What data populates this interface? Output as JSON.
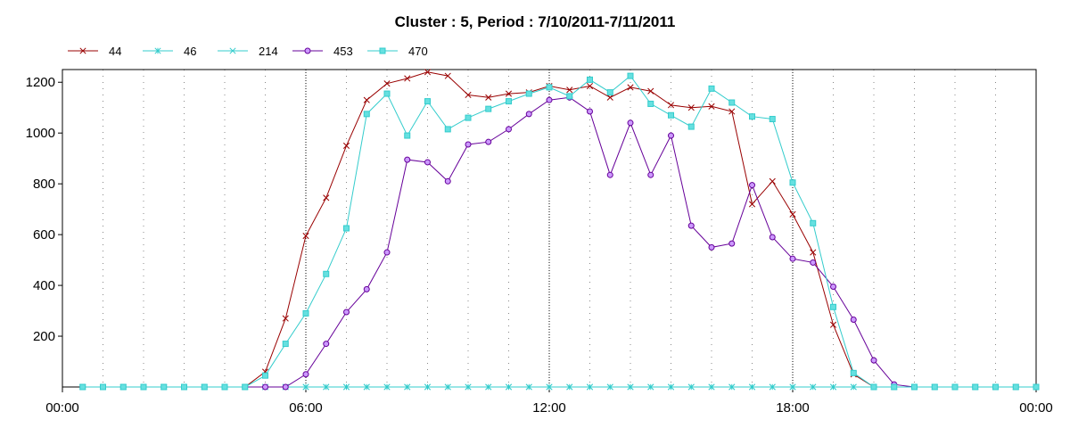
{
  "chart_data": {
    "type": "line",
    "title": "Cluster : 5, Period : 7/10/2011-7/11/2011",
    "xlabel": "",
    "ylabel": "",
    "x_ticks": [
      "00:00",
      "06:00",
      "12:00",
      "18:00",
      "00:00"
    ],
    "x_range_hours": [
      0,
      24
    ],
    "ylim": [
      0,
      1250
    ],
    "y_ticks": [
      200,
      400,
      600,
      800,
      1000,
      1200
    ],
    "grid": {
      "vertical": true,
      "horizontal": false,
      "style": "dotted"
    },
    "legend_position": "top-left",
    "x_hours": [
      0.5,
      1,
      1.5,
      2,
      2.5,
      3,
      3.5,
      4,
      4.5,
      5,
      5.5,
      6,
      6.5,
      7,
      7.5,
      8,
      8.5,
      9,
      9.5,
      10,
      10.5,
      11,
      11.5,
      12,
      12.5,
      13,
      13.5,
      14,
      14.5,
      15,
      15.5,
      16,
      16.5,
      17,
      17.5,
      18,
      18.5,
      19,
      19.5,
      20,
      20.5,
      21,
      21.5,
      22,
      22.5,
      23,
      23.5,
      24
    ],
    "series": [
      {
        "name": "44",
        "color": "#990000",
        "marker": "x",
        "values": [
          0,
          0,
          0,
          0,
          0,
          0,
          0,
          0,
          0,
          60,
          270,
          595,
          745,
          950,
          1130,
          1195,
          1215,
          1240,
          1225,
          1150,
          1140,
          1155,
          1160,
          1185,
          1170,
          1185,
          1140,
          1180,
          1165,
          1110,
          1100,
          1105,
          1085,
          720,
          810,
          680,
          530,
          245,
          50,
          0,
          0,
          0,
          0,
          0,
          0,
          0,
          0,
          0
        ]
      },
      {
        "name": "46",
        "color": "#33cccc",
        "marker": "star",
        "values": [
          0,
          0,
          0,
          0,
          0,
          0,
          0,
          0,
          0,
          0,
          0,
          0,
          0,
          0,
          0,
          0,
          0,
          0,
          0,
          0,
          0,
          0,
          0,
          0,
          0,
          0,
          0,
          0,
          0,
          0,
          0,
          0,
          0,
          0,
          0,
          0,
          0,
          0,
          0,
          0,
          0,
          0,
          0,
          0,
          0,
          0,
          0,
          0
        ]
      },
      {
        "name": "214",
        "color": "#33cccc",
        "marker": "x",
        "values": [
          0,
          0,
          0,
          0,
          0,
          0,
          0,
          0,
          0,
          0,
          0,
          0,
          0,
          0,
          0,
          0,
          0,
          0,
          0,
          0,
          0,
          0,
          0,
          0,
          0,
          0,
          0,
          0,
          0,
          0,
          0,
          0,
          0,
          0,
          0,
          0,
          0,
          0,
          0,
          0,
          0,
          0,
          0,
          0,
          0,
          0,
          0,
          0
        ]
      },
      {
        "name": "453",
        "color": "#660099",
        "marker": "circle",
        "values": [
          0,
          0,
          0,
          0,
          0,
          0,
          0,
          0,
          0,
          0,
          0,
          50,
          170,
          295,
          385,
          530,
          895,
          885,
          810,
          955,
          965,
          1015,
          1075,
          1130,
          1140,
          1085,
          835,
          1040,
          835,
          990,
          635,
          550,
          565,
          795,
          590,
          505,
          490,
          395,
          265,
          105,
          10,
          0,
          0,
          0,
          0,
          0,
          0,
          0
        ]
      },
      {
        "name": "470",
        "color": "#33cccc",
        "marker": "square",
        "values": [
          0,
          0,
          0,
          0,
          0,
          0,
          0,
          0,
          0,
          45,
          170,
          290,
          445,
          625,
          1075,
          1155,
          990,
          1125,
          1015,
          1060,
          1095,
          1125,
          1155,
          1180,
          1145,
          1210,
          1160,
          1225,
          1115,
          1070,
          1025,
          1175,
          1120,
          1065,
          1055,
          805,
          645,
          315,
          55,
          0,
          0,
          0,
          0,
          0,
          0,
          0,
          0,
          0
        ]
      }
    ]
  }
}
